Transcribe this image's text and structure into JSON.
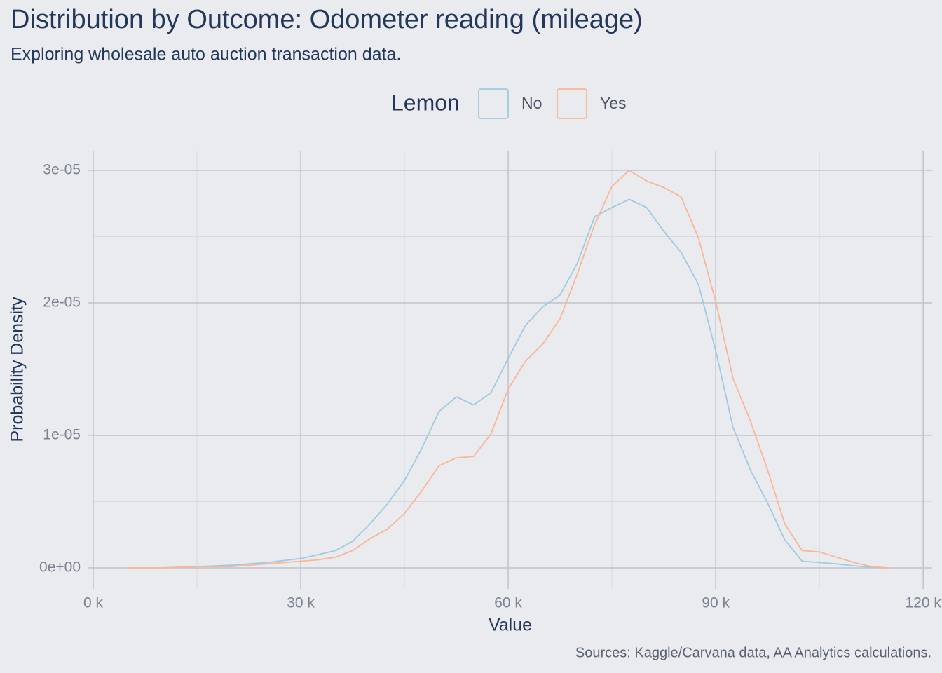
{
  "chart_data": {
    "type": "line",
    "title": "Distribution by Outcome: Odometer reading (mileage)",
    "subtitle": "Exploring wholesale auto auction transaction data.",
    "caption": "Sources: Kaggle/Carvana data, AA Analytics calculations.",
    "xlabel": "Value",
    "ylabel": "Probability Density",
    "legend_title": "Lemon",
    "legend_position": "top",
    "x": [
      5000,
      10000,
      15000,
      20000,
      25000,
      30000,
      32500,
      35000,
      37500,
      40000,
      42500,
      45000,
      47500,
      50000,
      52500,
      55000,
      57500,
      60000,
      62500,
      65000,
      67500,
      70000,
      72500,
      75000,
      77500,
      80000,
      82500,
      85000,
      87500,
      90000,
      92500,
      95000,
      97500,
      100000,
      102500,
      105000,
      107500,
      110000,
      112500,
      115000
    ],
    "series": [
      {
        "name": "No",
        "color": "#9fcae2",
        "values": [
          0,
          5e-09,
          1e-07,
          2e-07,
          4e-07,
          7e-07,
          1e-06,
          1.3e-06,
          2e-06,
          3.3e-06,
          4.8e-06,
          6.6e-06,
          9e-06,
          1.18e-05,
          1.29e-05,
          1.23e-05,
          1.32e-05,
          1.58e-05,
          1.83e-05,
          1.97e-05,
          2.06e-05,
          2.3e-05,
          2.65e-05,
          2.72e-05,
          2.78e-05,
          2.72e-05,
          2.54e-05,
          2.38e-05,
          2.14e-05,
          1.64e-05,
          1.06e-05,
          7.4e-06,
          4.9e-06,
          2.1e-06,
          5e-07,
          4e-07,
          3e-07,
          1.5e-07,
          5e-08,
          0
        ]
      },
      {
        "name": "Yes",
        "color": "#fbb597",
        "values": [
          0,
          5e-09,
          1e-07,
          1e-07,
          3e-07,
          5e-07,
          6e-07,
          8e-07,
          1.3e-06,
          2.2e-06,
          2.9e-06,
          4.1e-06,
          5.8e-06,
          7.7e-06,
          8.3e-06,
          8.4e-06,
          1.01e-05,
          1.35e-05,
          1.56e-05,
          1.69e-05,
          1.88e-05,
          2.22e-05,
          2.59e-05,
          2.88e-05,
          3e-05,
          2.92e-05,
          2.87e-05,
          2.8e-05,
          2.49e-05,
          2.01e-05,
          1.43e-05,
          1.11e-05,
          7.4e-06,
          3.3e-06,
          1.3e-06,
          1.2e-06,
          8e-07,
          4e-07,
          1e-07,
          0
        ]
      }
    ],
    "xlim": [
      0,
      121300
    ],
    "ylim": [
      -1.59e-06,
      3.148e-05
    ],
    "xticks": [
      {
        "value": 0,
        "label": "0 k"
      },
      {
        "value": 30000,
        "label": "30 k"
      },
      {
        "value": 60000,
        "label": "60 k"
      },
      {
        "value": 90000,
        "label": "90 k"
      },
      {
        "value": 120000,
        "label": "120 k"
      }
    ],
    "yticks": [
      {
        "value": 0,
        "label": "0e+00"
      },
      {
        "value": 1e-05,
        "label": "1e-05"
      },
      {
        "value": 2e-05,
        "label": "2e-05"
      },
      {
        "value": 3e-05,
        "label": "3e-05"
      }
    ],
    "x_minor_grid": [
      15000,
      45000,
      75000,
      105000
    ],
    "y_minor_grid": [
      5e-06,
      1.5e-05,
      2.5e-05
    ],
    "grid": true
  }
}
